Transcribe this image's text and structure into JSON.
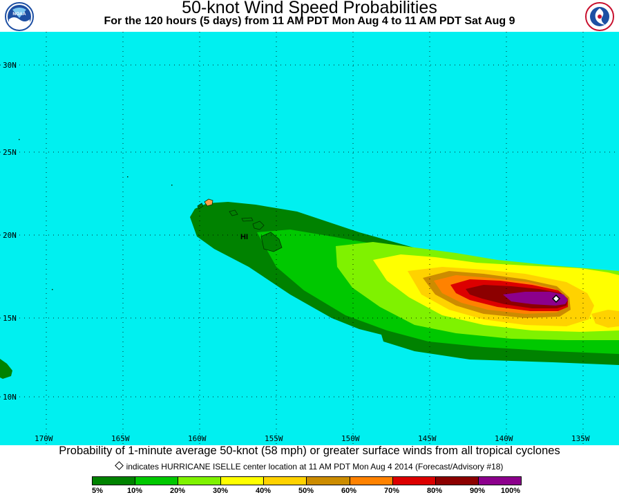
{
  "header": {
    "title": "50-knot Wind Speed Probabilities",
    "subtitle": "For the 120 hours (5 days) from 11 AM PDT Mon Aug 4 to 11 AM PDT Sat Aug 9"
  },
  "logos": {
    "left": {
      "icon": "noaa-logo",
      "text": "NOAA"
    },
    "right": {
      "icon": "nws-logo",
      "text": "NATIONAL WEATHER SERVICE"
    }
  },
  "map": {
    "ocean_color": "#00f0f0",
    "lat_labels": [
      "30N",
      "25N",
      "20N",
      "15N",
      "10N"
    ],
    "lon_labels": [
      "170W",
      "165W",
      "160W",
      "155W",
      "150W",
      "145W",
      "140W",
      "135W"
    ],
    "place_label": "HI",
    "storm_center_marker": "diamond-marker"
  },
  "footer": {
    "description": "Probability of 1-minute average 50-knot (58 mph) or greater surface winds from all tropical cyclones",
    "note": "indicates HURRICANE ISELLE center location at 11 AM PDT Mon Aug 4 2014 (Forecast/Advisory #18)"
  },
  "legend": {
    "colors": [
      "#008200",
      "#00c800",
      "#7ff200",
      "#ffff00",
      "#ffd200",
      "#cc8c00",
      "#ff8200",
      "#dc0000",
      "#8c0000",
      "#8c008c"
    ],
    "labels": [
      "5%",
      "10%",
      "20%",
      "30%",
      "40%",
      "50%",
      "60%",
      "70%",
      "80%",
      "90%",
      "100%"
    ]
  }
}
